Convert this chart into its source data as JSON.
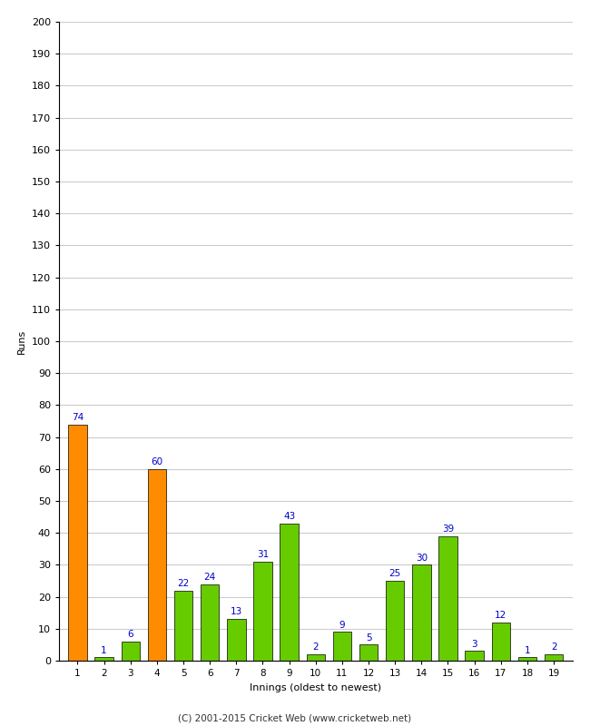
{
  "innings": [
    1,
    2,
    3,
    4,
    5,
    6,
    7,
    8,
    9,
    10,
    11,
    12,
    13,
    14,
    15,
    16,
    17,
    18,
    19
  ],
  "runs": [
    74,
    1,
    6,
    60,
    22,
    24,
    13,
    31,
    43,
    2,
    9,
    5,
    25,
    30,
    39,
    3,
    12,
    1,
    2
  ],
  "colors": [
    "#ff8c00",
    "#66cc00",
    "#66cc00",
    "#ff8c00",
    "#66cc00",
    "#66cc00",
    "#66cc00",
    "#66cc00",
    "#66cc00",
    "#66cc00",
    "#66cc00",
    "#66cc00",
    "#66cc00",
    "#66cc00",
    "#66cc00",
    "#66cc00",
    "#66cc00",
    "#66cc00",
    "#66cc00"
  ],
  "xlabel": "Innings (oldest to newest)",
  "ylabel": "Runs",
  "ylim": [
    0,
    200
  ],
  "yticks": [
    0,
    10,
    20,
    30,
    40,
    50,
    60,
    70,
    80,
    90,
    100,
    110,
    120,
    130,
    140,
    150,
    160,
    170,
    180,
    190,
    200
  ],
  "label_color": "#0000cc",
  "bar_edge_color": "#000000",
  "background_color": "#ffffff",
  "grid_color": "#cccccc",
  "footer": "(C) 2001-2015 Cricket Web (www.cricketweb.net)"
}
